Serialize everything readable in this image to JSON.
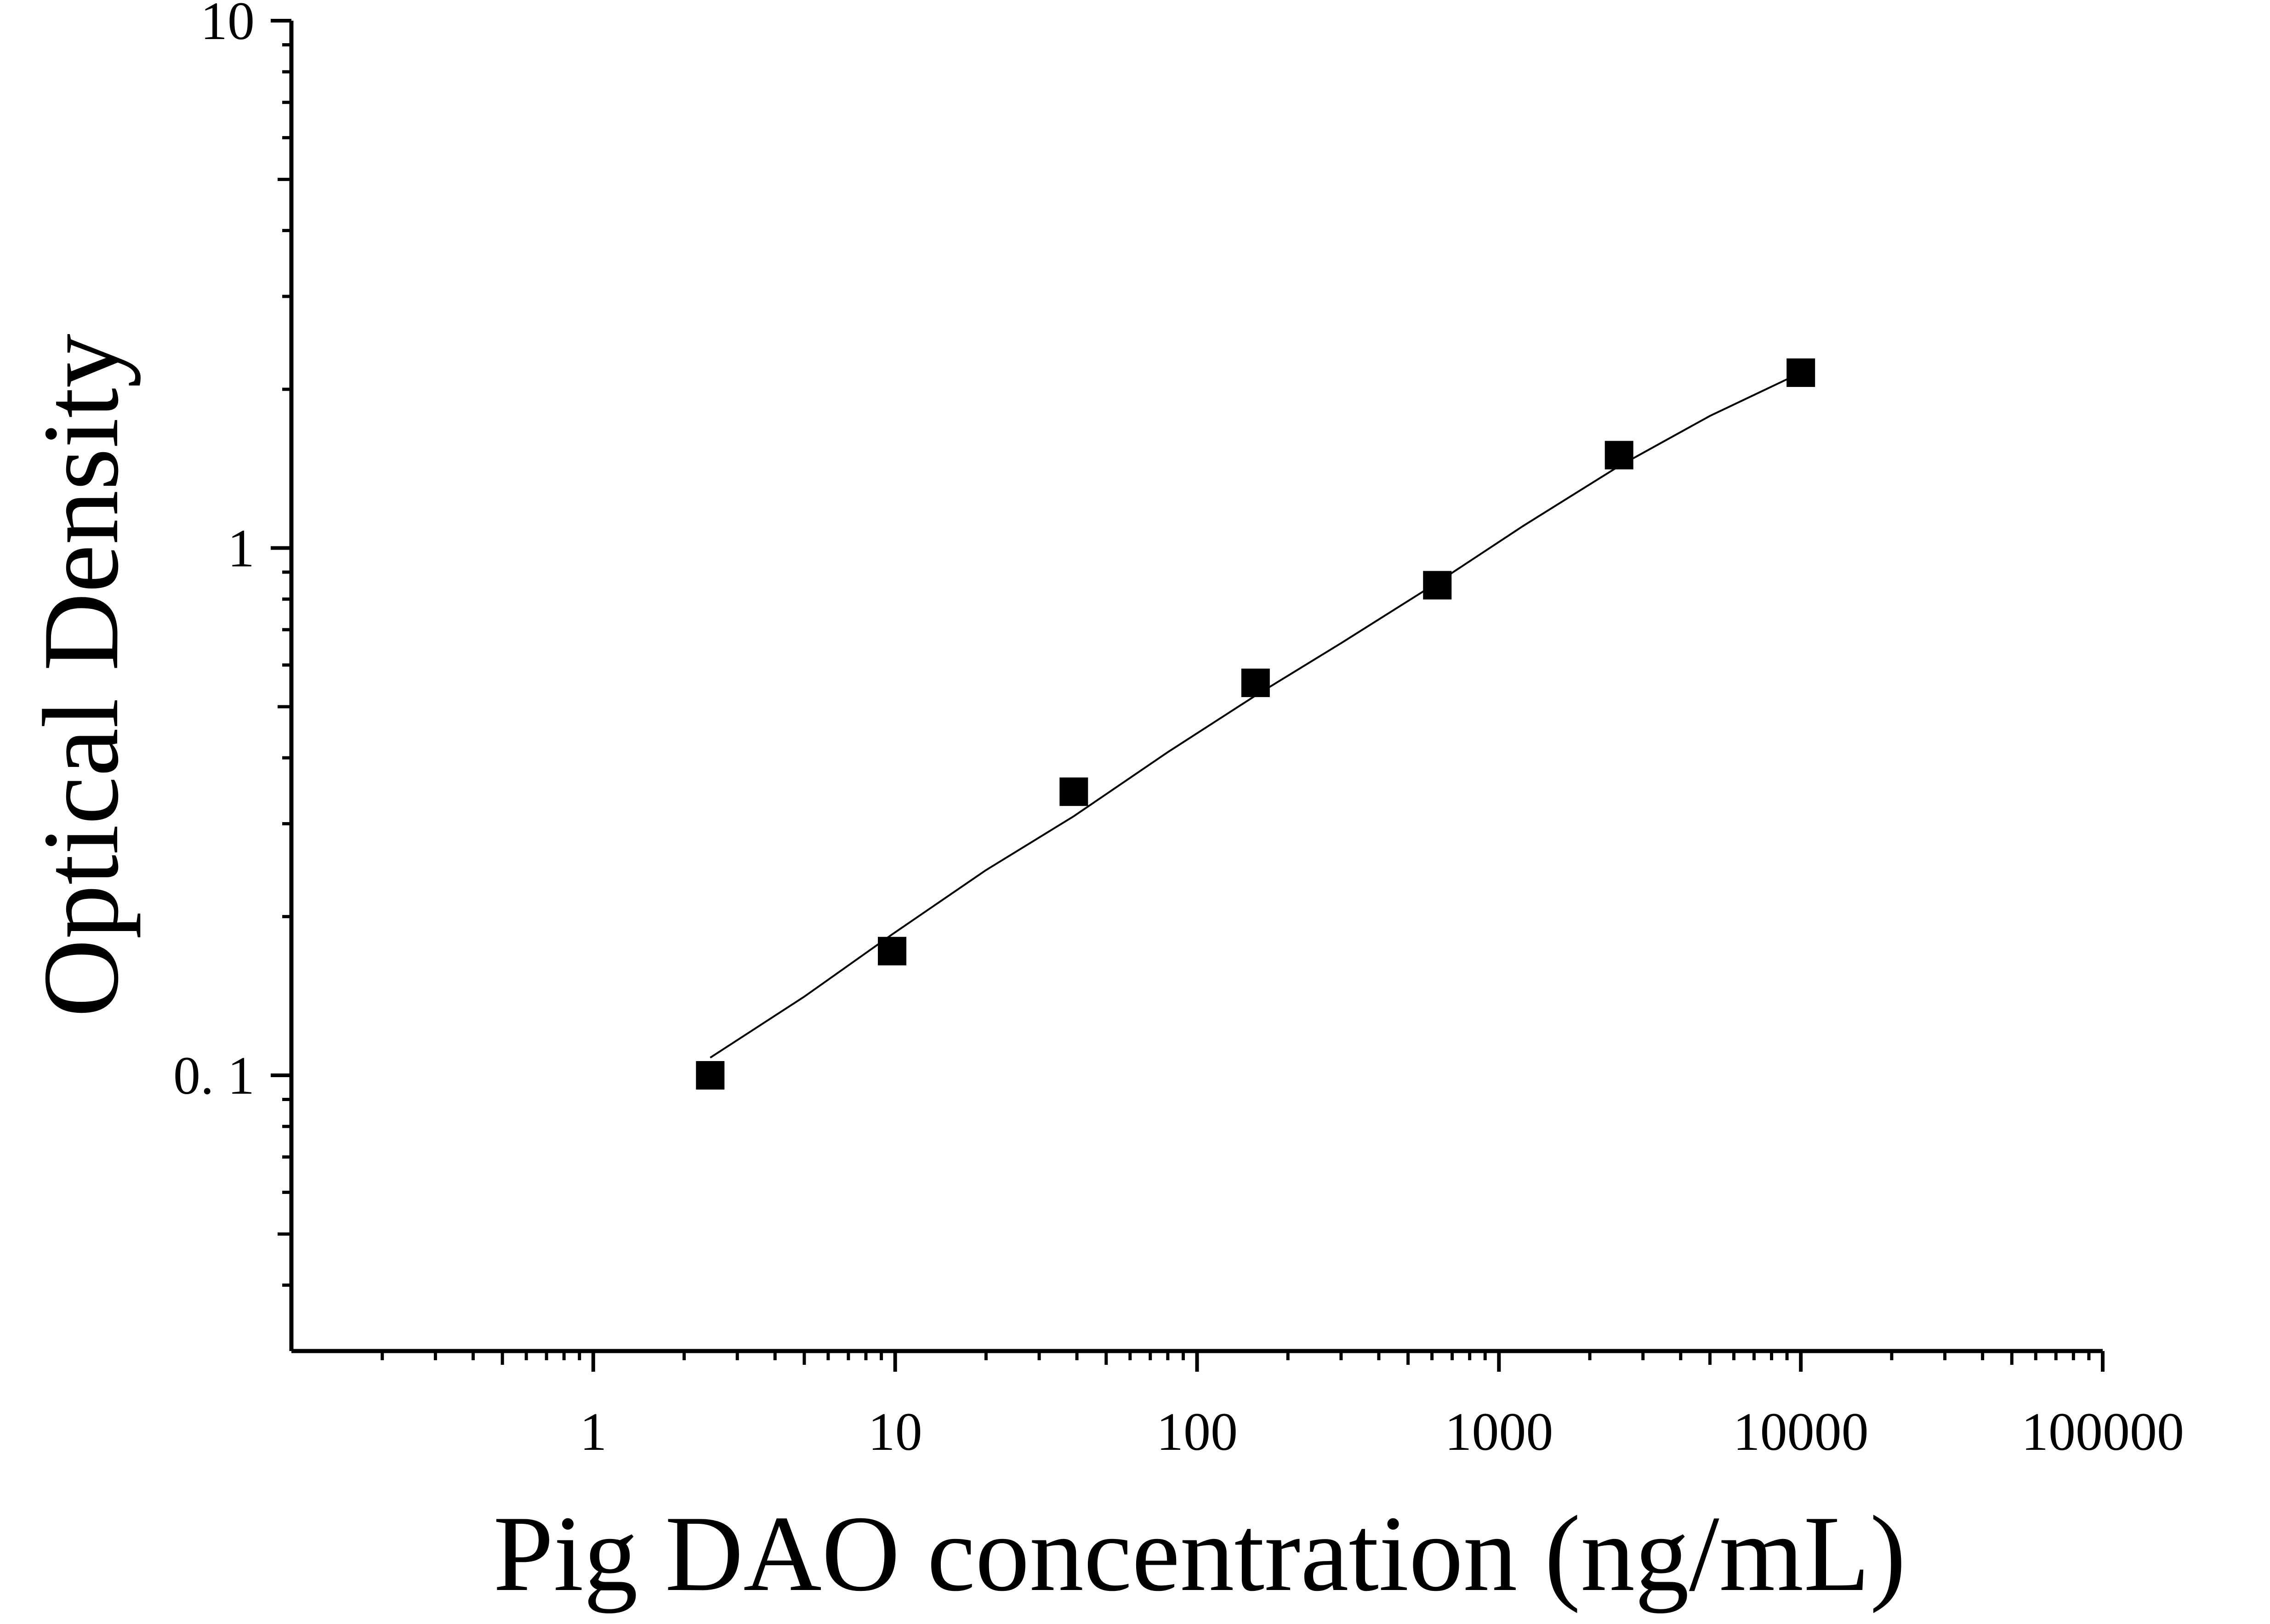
{
  "chart_data": {
    "type": "scatter",
    "xlabel": "Pig DAO concentration (ng/mL)",
    "ylabel": "Optical Density",
    "xscale": "log",
    "yscale": "log",
    "xlim": [
      0.1,
      100000
    ],
    "ylim": [
      0.03,
      10
    ],
    "x_ticks": [
      1,
      10,
      100,
      1000,
      10000,
      100000
    ],
    "x_tick_labels": [
      "1",
      "10",
      "100",
      "1000",
      "10000",
      "100000"
    ],
    "y_ticks": [
      0.1,
      1,
      10
    ],
    "y_tick_labels": [
      "0. 1",
      "1",
      "10"
    ],
    "grid": false,
    "series": [
      {
        "marker": "square",
        "color": "#000000",
        "x": [
          2.44,
          9.77,
          39.06,
          156.25,
          625,
          2500,
          10000
        ],
        "y": [
          0.1,
          0.172,
          0.345,
          0.555,
          0.85,
          1.5,
          2.15
        ]
      }
    ],
    "fit_curve": {
      "color": "#000000",
      "x": [
        2.44,
        5,
        9.77,
        20,
        39.06,
        80,
        156.25,
        300,
        625,
        1200,
        2500,
        5000,
        10000
      ],
      "y": [
        0.108,
        0.141,
        0.185,
        0.245,
        0.31,
        0.41,
        0.525,
        0.66,
        0.86,
        1.1,
        1.43,
        1.78,
        2.15
      ]
    }
  }
}
